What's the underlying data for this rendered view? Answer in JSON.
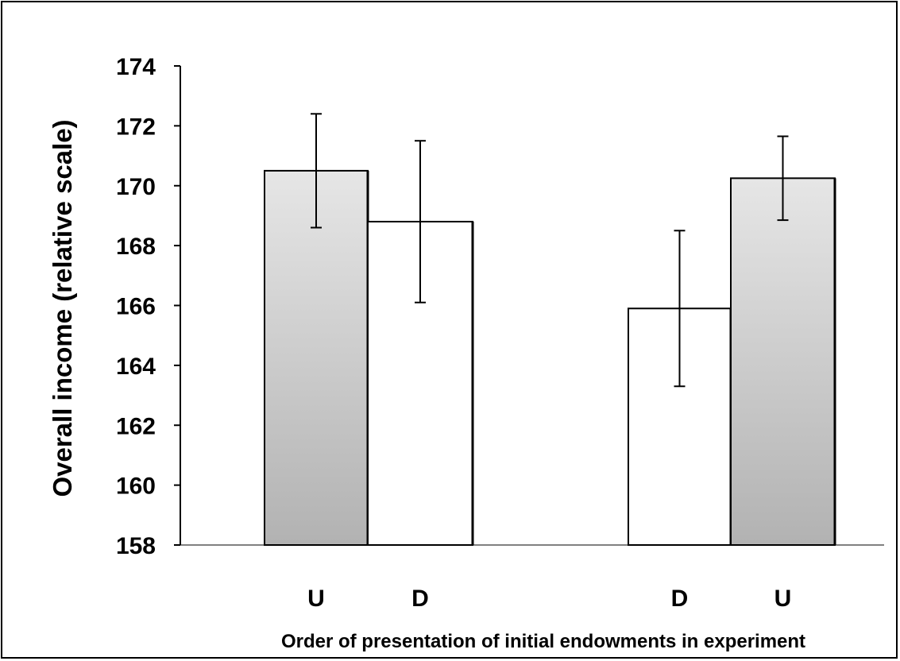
{
  "chart_data": {
    "type": "bar",
    "title": "",
    "xlabel": "Order of presentation of initial endowments in experiment",
    "ylabel": "Overall income (relative scale)",
    "ylim": [
      158,
      174
    ],
    "yticks": [
      158,
      160,
      162,
      164,
      166,
      168,
      170,
      172,
      174
    ],
    "grid": false,
    "legend": "none",
    "colors": {
      "gradient_top": "#e6e6e6",
      "gradient_bottom": "#b2b2b2",
      "white_bar": "#ffffff",
      "stroke": "#000000"
    },
    "groups": [
      {
        "bars": [
          {
            "category": "U",
            "value": 170.5,
            "error": 1.9,
            "fill": "gradient"
          },
          {
            "category": "D",
            "value": 168.8,
            "error": 2.7,
            "fill": "white"
          }
        ]
      },
      {
        "bars": [
          {
            "category": "D",
            "value": 165.9,
            "error": 2.6,
            "fill": "white"
          },
          {
            "category": "U",
            "value": 170.25,
            "error": 1.4,
            "fill": "gradient"
          }
        ]
      }
    ]
  }
}
